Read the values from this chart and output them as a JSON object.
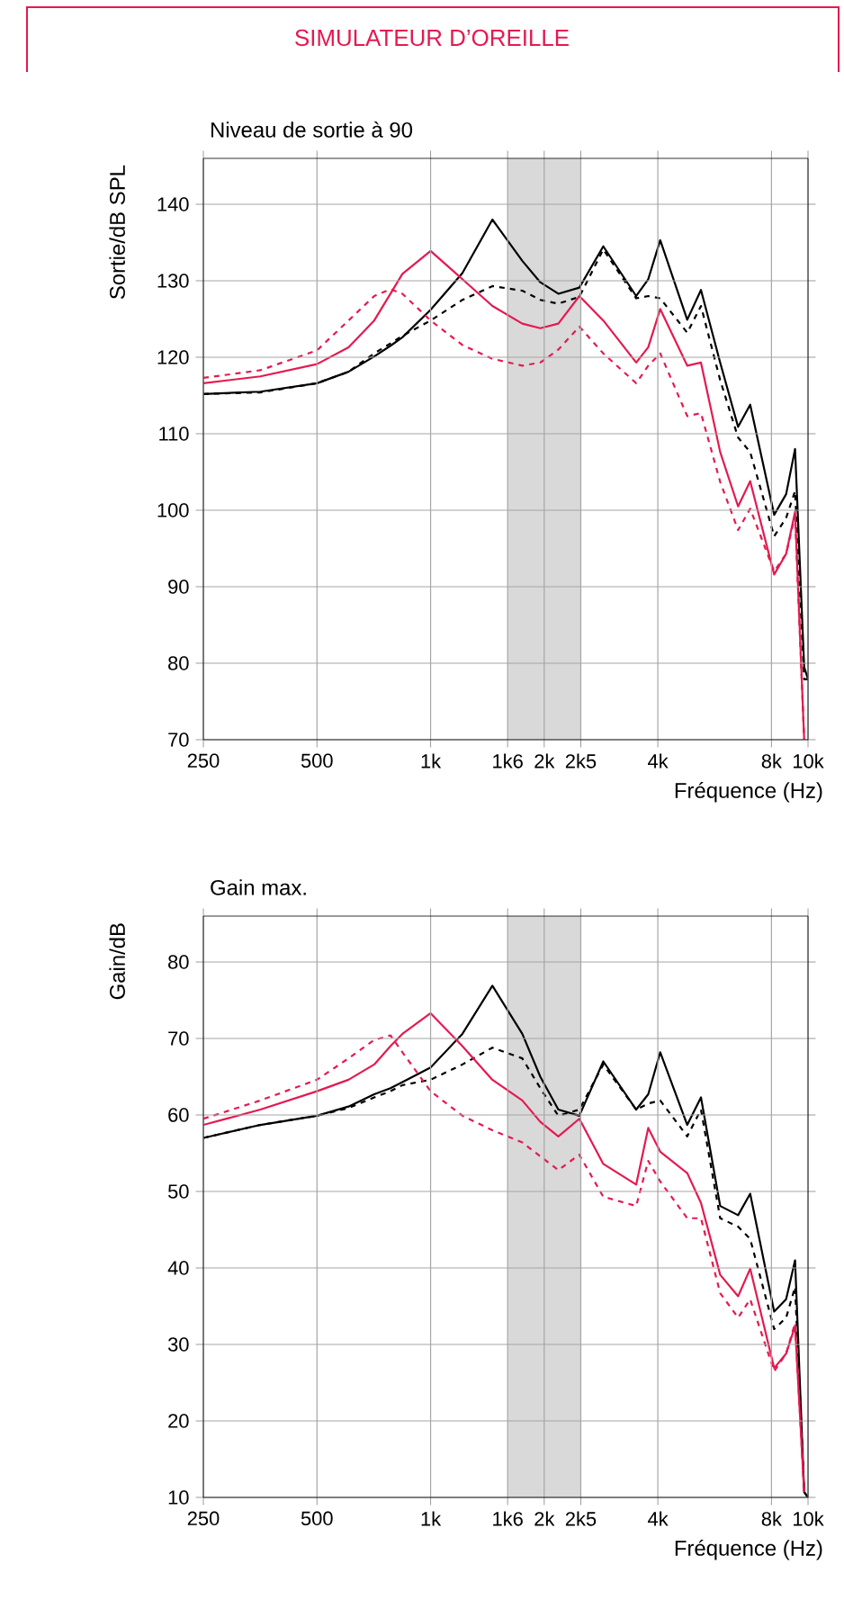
{
  "chart_data": [
    {
      "type": "line",
      "title": "SIMULATEUR D’OREILLE",
      "subtitle": "Niveau de sortie à 90",
      "xlabel": "Fréquence (Hz)",
      "ylabel": "Sortie/dB SPL",
      "log": "x",
      "grid": true,
      "x": [
        250,
        354,
        500,
        606,
        709,
        783,
        842,
        1000,
        1214,
        1458,
        1750,
        1953,
        2180,
        2478,
        2868,
        3506,
        3773,
        4059,
        4786,
        5204,
        5852,
        6528,
        7027,
        8134,
        8750,
        9240,
        9768,
        10000
      ],
      "xlim": [
        250,
        10000
      ],
      "ylim": [
        70,
        146
      ],
      "xticks": [
        250,
        500,
        {
          "value": 1000,
          "label": "1k"
        },
        {
          "value": 1600,
          "label": "1k6"
        },
        {
          "value": 2000,
          "label": "2k"
        },
        {
          "value": 2500,
          "label": "2k5"
        },
        {
          "value": 4000,
          "label": "4k"
        },
        {
          "value": 8000,
          "label": "8k"
        },
        {
          "value": 10000,
          "label": "10k"
        }
      ],
      "yticks": [
        70,
        80,
        90,
        100,
        110,
        120,
        130,
        140
      ],
      "bands": [
        {
          "axis": "x",
          "from": 1600,
          "to": 2500,
          "color": "#d9d9d9"
        }
      ],
      "series": [
        {
          "color": "#000000",
          "line_style": "solid",
          "values": [
            115.2,
            115.5,
            116.6,
            118.1,
            120.1,
            121.5,
            122.6,
            126.2,
            131.0,
            138.0,
            132.6,
            129.8,
            128.3,
            129.1,
            134.5,
            128.0,
            130.2,
            135.3,
            124.9,
            128.8,
            119.3,
            110.9,
            113.8,
            99.4,
            102.1,
            108.0,
            79.5,
            77.9
          ]
        },
        {
          "color": "#000000",
          "line_style": "dashed",
          "values": [
            115.2,
            115.4,
            116.6,
            118.1,
            120.5,
            121.8,
            122.8,
            124.8,
            127.5,
            129.3,
            128.7,
            127.5,
            127.0,
            127.9,
            134.1,
            127.7,
            128.0,
            127.7,
            123.2,
            126.7,
            117.0,
            109.5,
            107.6,
            96.6,
            99.0,
            102.5,
            77.9,
            77.9
          ]
        },
        {
          "color": "#e5194f",
          "line_style": "solid",
          "values": [
            116.6,
            117.5,
            119.1,
            121.3,
            124.8,
            128.3,
            130.9,
            133.9,
            130.2,
            126.7,
            124.4,
            123.8,
            124.4,
            128.0,
            124.8,
            119.3,
            121.3,
            126.3,
            118.9,
            119.3,
            107.6,
            100.5,
            103.8,
            91.6,
            94.3,
            99.8,
            70,
            null
          ]
        },
        {
          "color": "#e5194f",
          "line_style": "dashed",
          "values": [
            117.3,
            118.3,
            120.9,
            124.8,
            128.0,
            128.9,
            128.3,
            124.8,
            121.6,
            119.8,
            118.9,
            119.3,
            121.0,
            124.0,
            120.5,
            116.6,
            118.9,
            120.5,
            112.3,
            112.7,
            103.7,
            97.4,
            100.2,
            92.0,
            94.3,
            99.3,
            70,
            null
          ]
        }
      ]
    },
    {
      "type": "line",
      "title": "Gain max.",
      "xlabel": "Fréquence (Hz)",
      "ylabel": "Gain/dB",
      "log": "x",
      "grid": true,
      "x": [
        250,
        354,
        500,
        606,
        709,
        783,
        842,
        1000,
        1214,
        1458,
        1750,
        1953,
        2180,
        2478,
        2868,
        3506,
        3773,
        4059,
        4786,
        5204,
        5852,
        6528,
        7027,
        8134,
        8750,
        9240,
        9768,
        10000
      ],
      "xlim": [
        250,
        10000
      ],
      "ylim": [
        10,
        86
      ],
      "xticks": [
        250,
        500,
        {
          "value": 1000,
          "label": "1k"
        },
        {
          "value": 1600,
          "label": "1k6"
        },
        {
          "value": 2000,
          "label": "2k"
        },
        {
          "value": 2500,
          "label": "2k5"
        },
        {
          "value": 4000,
          "label": "4k"
        },
        {
          "value": 8000,
          "label": "8k"
        },
        {
          "value": 10000,
          "label": "10k"
        }
      ],
      "yticks": [
        10,
        20,
        30,
        40,
        50,
        60,
        70,
        80
      ],
      "bands": [
        {
          "axis": "x",
          "from": 1600,
          "to": 2500,
          "color": "#d9d9d9"
        }
      ],
      "series": [
        {
          "color": "#000000",
          "line_style": "solid",
          "values": [
            57.0,
            58.7,
            59.9,
            61.1,
            62.7,
            63.5,
            64.3,
            66.2,
            70.6,
            76.9,
            70.6,
            65.0,
            60.7,
            59.9,
            67.0,
            60.7,
            62.7,
            68.2,
            58.7,
            62.3,
            48.1,
            46.9,
            49.7,
            34.3,
            35.9,
            41.0,
            10.7,
            10
          ]
        },
        {
          "color": "#000000",
          "line_style": "dashed",
          "values": [
            57.0,
            58.7,
            59.9,
            60.9,
            62.3,
            63.1,
            63.9,
            64.6,
            66.6,
            68.8,
            67.4,
            63.5,
            59.9,
            60.7,
            66.6,
            60.7,
            61.5,
            61.9,
            57.2,
            60.7,
            46.5,
            45.4,
            43.8,
            32.0,
            33.5,
            37.5,
            10.7,
            10
          ]
        },
        {
          "color": "#e5194f",
          "line_style": "solid",
          "values": [
            58.7,
            60.7,
            63.1,
            64.6,
            66.6,
            69.0,
            70.6,
            73.3,
            69.0,
            64.6,
            61.9,
            59.1,
            57.2,
            59.5,
            53.6,
            50.9,
            58.3,
            55.2,
            52.4,
            48.5,
            39.1,
            36.3,
            39.9,
            26.9,
            28.8,
            32.4,
            10.7,
            null
          ]
        },
        {
          "color": "#e5194f",
          "line_style": "dashed",
          "values": [
            59.5,
            61.9,
            64.6,
            67.4,
            69.8,
            70.4,
            68.2,
            63.1,
            59.9,
            58.0,
            56.4,
            54.6,
            52.8,
            54.8,
            49.3,
            48.1,
            54.0,
            51.3,
            46.5,
            46.5,
            36.7,
            33.5,
            35.9,
            26.5,
            28.8,
            32.8,
            10.7,
            null
          ]
        }
      ]
    }
  ]
}
